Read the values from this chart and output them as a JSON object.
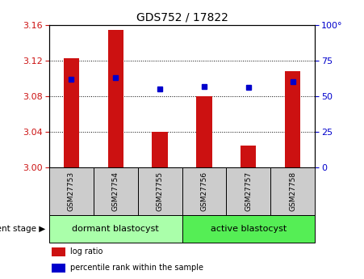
{
  "title": "GDS752 / 17822",
  "samples": [
    "GSM27753",
    "GSM27754",
    "GSM27755",
    "GSM27756",
    "GSM27757",
    "GSM27758"
  ],
  "log_ratio": [
    3.123,
    3.155,
    3.04,
    3.08,
    3.025,
    3.108
  ],
  "percentile_rank": [
    62,
    63,
    55,
    57,
    56,
    60
  ],
  "ylim_left": [
    3.0,
    3.16
  ],
  "yticks_left": [
    3.0,
    3.04,
    3.08,
    3.12,
    3.16
  ],
  "ylim_right": [
    0,
    100
  ],
  "yticks_right": [
    0,
    25,
    50,
    75,
    100
  ],
  "bar_color": "#CC1111",
  "marker_color": "#0000CC",
  "bar_bottom": 3.0,
  "groups": [
    {
      "label": "dormant blastocyst",
      "indices": [
        0,
        1,
        2
      ],
      "color": "#AAFFAA"
    },
    {
      "label": "active blastocyst",
      "indices": [
        3,
        4,
        5
      ],
      "color": "#55EE55"
    }
  ],
  "group_label_prefix": "development stage",
  "legend_items": [
    {
      "color": "#CC1111",
      "label": "log ratio"
    },
    {
      "color": "#0000CC",
      "label": "percentile rank within the sample"
    }
  ],
  "title_fontsize": 10,
  "tick_label_color_left": "#CC1111",
  "tick_label_color_right": "#0000CC",
  "bar_width": 0.35,
  "grid_color": "black",
  "sample_box_color": "#CCCCCC",
  "right_tick_labels": [
    "0",
    "25",
    "50",
    "75",
    "100°"
  ]
}
